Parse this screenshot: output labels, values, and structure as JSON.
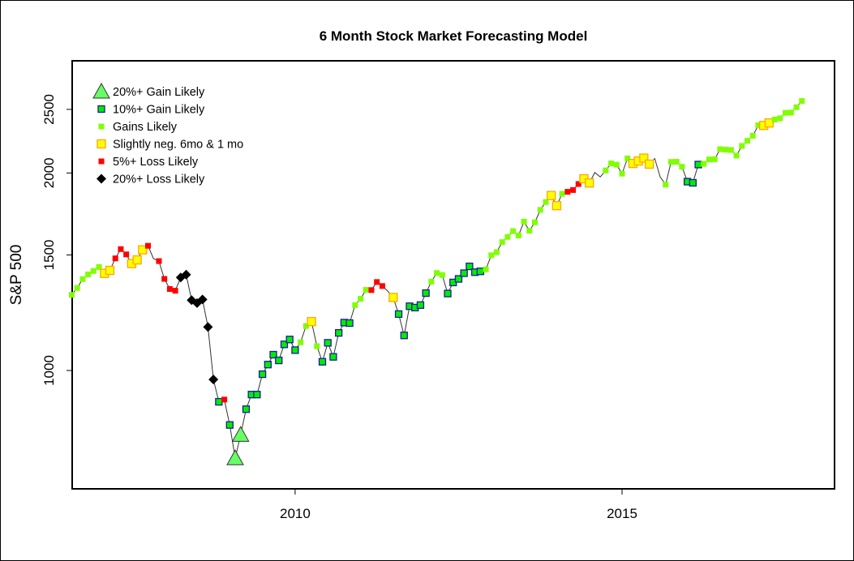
{
  "chart_data": {
    "type": "scatter",
    "title": "6 Month Stock Market Forecasting Model",
    "xlabel": "",
    "ylabel": "S&P 500",
    "y_scale": "log",
    "xlim": [
      2006.59,
      2018.25
    ],
    "ylim": [
      700,
      2850
    ],
    "x_ticks": [
      {
        "value": 2010,
        "label": "2010"
      },
      {
        "value": 2015,
        "label": "2015"
      }
    ],
    "y_ticks": [
      {
        "value": 1000,
        "label": "1000"
      },
      {
        "value": 1500,
        "label": "1500"
      },
      {
        "value": 2000,
        "label": "2000"
      },
      {
        "value": 2500,
        "label": "2500"
      }
    ],
    "grid": false,
    "legend_position": "top-left",
    "legend": [
      {
        "key": "T",
        "label": "20%+ Gain Likely"
      },
      {
        "key": "B",
        "label": "10%+ Gain Likely"
      },
      {
        "key": "G",
        "label": "Gains Likely"
      },
      {
        "key": "Y",
        "label": "Slightly neg. 6mo & 1 mo"
      },
      {
        "key": "R",
        "label": "5%+  Loss Likely"
      },
      {
        "key": "K",
        "label": "20%+  Loss Likely"
      }
    ],
    "start": {
      "year": 2006,
      "month": 8
    },
    "frequency": "monthly",
    "values": [
      1304,
      1336,
      1378,
      1401,
      1418,
      1438,
      1406,
      1421,
      1482,
      1531,
      1503,
      1455,
      1474,
      1527,
      1549,
      1481,
      1468,
      1379,
      1331,
      1323,
      1386,
      1400,
      1280,
      1267,
      1283,
      1165,
      969,
      896,
      903,
      826,
      735,
      798,
      873,
      919,
      919,
      987,
      1021,
      1057,
      1036,
      1096,
      1115,
      1074,
      1104,
      1169,
      1187,
      1089,
      1031,
      1102,
      1049,
      1141,
      1183,
      1181,
      1258,
      1286,
      1327,
      1326,
      1364,
      1345,
      1321,
      1292,
      1219,
      1131,
      1253,
      1247,
      1258,
      1312,
      1366,
      1408,
      1398,
      1310,
      1362,
      1379,
      1407,
      1441,
      1412,
      1416,
      1426,
      1498,
      1515,
      1569,
      1598,
      1631,
      1606,
      1686,
      1633,
      1682,
      1757,
      1806,
      1848,
      1783,
      1859,
      1872,
      1884,
      1924,
      1960,
      1931,
      2003,
      1972,
      2018,
      2068,
      2059,
      1995,
      2105,
      2068,
      2086,
      2107,
      2063,
      2104,
      1972,
      1920,
      2079,
      2080,
      2044,
      1940,
      1932,
      2060,
      2065,
      2097,
      2099,
      2174,
      2171,
      2168,
      2126,
      2199,
      2239,
      2279,
      2364,
      2363,
      2384,
      2412,
      2423,
      2470,
      2472,
      2519,
      2575
    ],
    "categories": [
      "G",
      "G",
      "G",
      "G",
      "G",
      "G",
      "Y",
      "Y",
      "R",
      "R",
      "R",
      "Y",
      "Y",
      "Y",
      "R",
      "N",
      "R",
      "R",
      "R",
      "R",
      "K",
      "K",
      "K",
      "K",
      "K",
      "K",
      "K",
      "B",
      "R",
      "B",
      "T",
      "T",
      "B",
      "B",
      "B",
      "B",
      "B",
      "B",
      "B",
      "B",
      "B",
      "B",
      "G",
      "G",
      "Y",
      "G",
      "B",
      "B",
      "B",
      "B",
      "B",
      "B",
      "G",
      "G",
      "G",
      "R",
      "R",
      "R",
      "N",
      "Y",
      "B",
      "B",
      "B",
      "B",
      "B",
      "B",
      "G",
      "G",
      "G",
      "B",
      "B",
      "B",
      "B",
      "B",
      "B",
      "B",
      "G",
      "G",
      "G",
      "G",
      "G",
      "G",
      "G",
      "G",
      "G",
      "G",
      "G",
      "G",
      "Y",
      "Y",
      "G",
      "R",
      "R",
      "R",
      "Y",
      "Y",
      "N",
      "N",
      "G",
      "G",
      "G",
      "G",
      "G",
      "Y",
      "Y",
      "Y",
      "Y",
      "N",
      "N",
      "G",
      "G",
      "G",
      "G",
      "B",
      "B",
      "B",
      "G",
      "G",
      "G",
      "G",
      "G",
      "G",
      "G",
      "G",
      "G",
      "G",
      "G",
      "Y",
      "Y",
      "G",
      "G",
      "G",
      "G",
      "G",
      "G"
    ],
    "colors": {
      "T": "#66FF66",
      "B": "#00EE00",
      "B_border": "#1C1C9C",
      "G": "#7FFF00",
      "Y": "#FFFF00",
      "Y_border": "#FFA500",
      "Y_legend": "#FFA500",
      "R": "#FF0000",
      "K": "#000000"
    }
  }
}
